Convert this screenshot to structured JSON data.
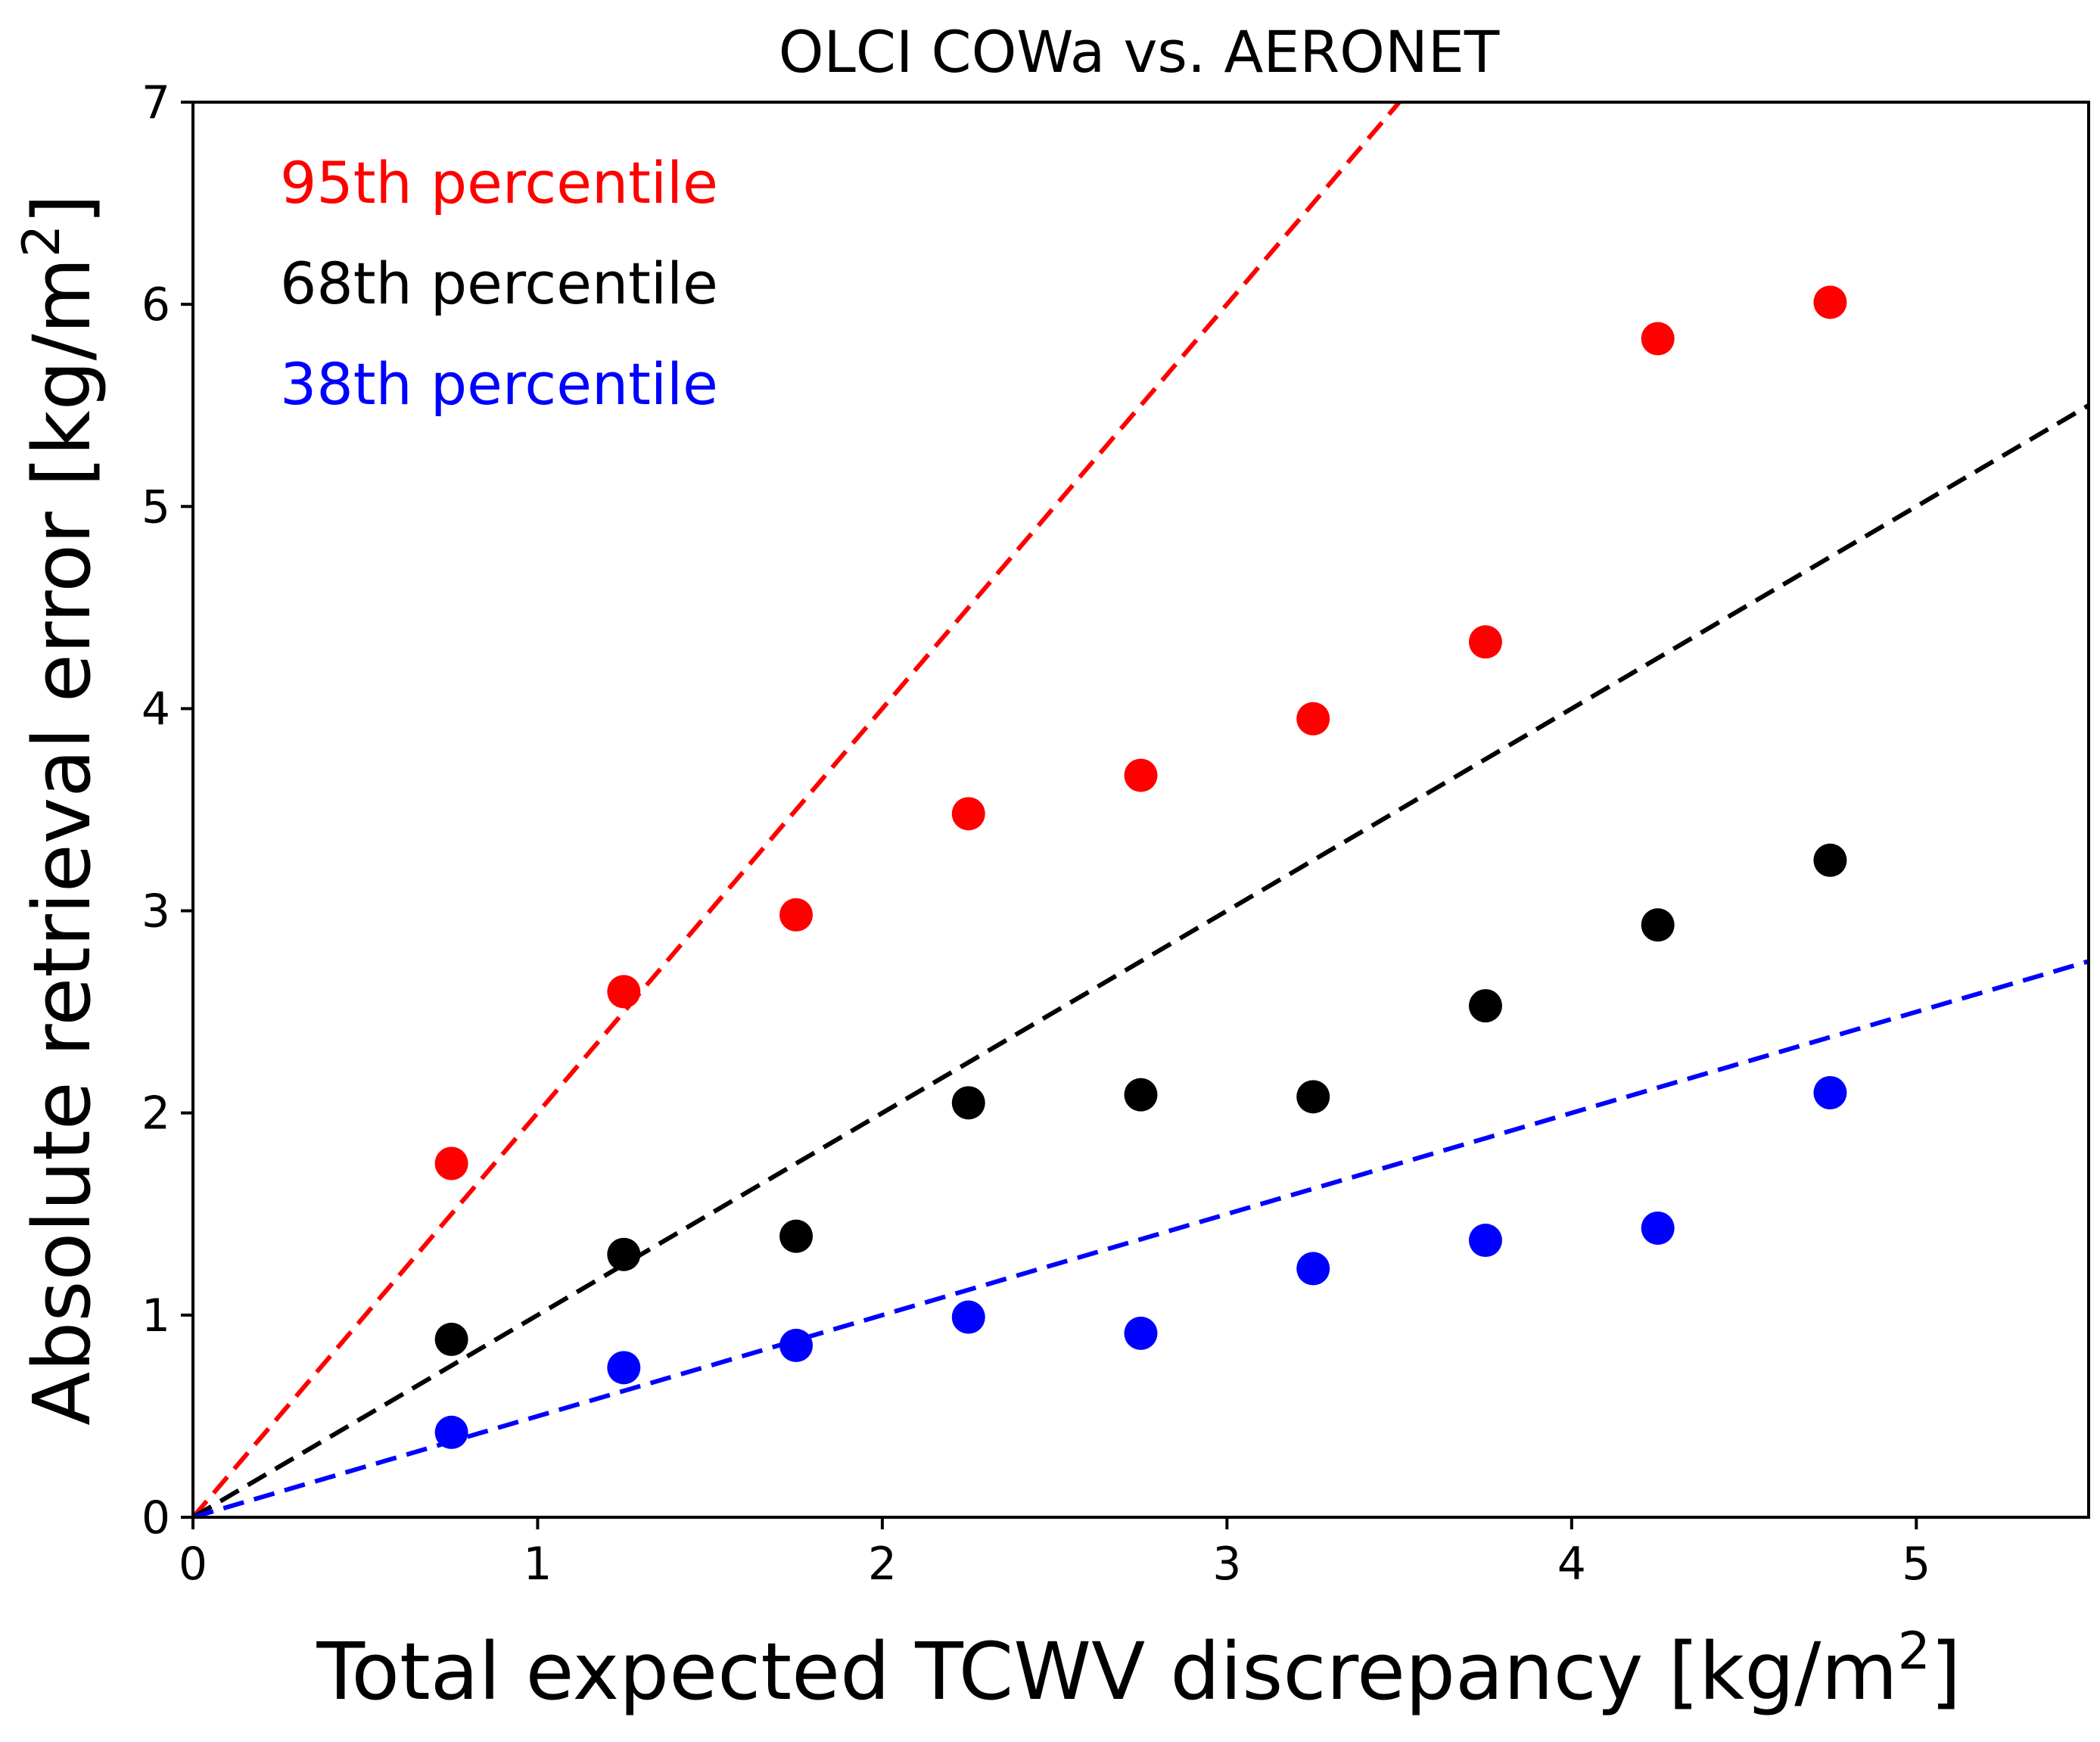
{
  "chart_data": {
    "type": "scatter",
    "title": "OLCI COWa vs. AERONET",
    "xlabel": "Total expected TCWV discrepancy [kg/m",
    "xlabel_sup": "2",
    "xlabel_end": "]",
    "ylabel": "Absolute retrieval error [kg/m",
    "ylabel_sup": "2",
    "ylabel_end": "]",
    "xlim": [
      0,
      5.5
    ],
    "ylim": [
      0,
      7
    ],
    "xticks": [
      "0",
      "1",
      "2",
      "3",
      "4",
      "5"
    ],
    "yticks": [
      "0",
      "1",
      "2",
      "3",
      "4",
      "5",
      "6",
      "7"
    ],
    "grid": false,
    "legend_position": "top-left",
    "x": [
      0.75,
      1.25,
      1.75,
      2.25,
      2.75,
      3.25,
      3.75,
      4.25,
      4.75
    ],
    "series": [
      {
        "name": "95th percentile",
        "color": "#ff0000",
        "values": [
          1.75,
          2.6,
          2.98,
          3.48,
          3.67,
          3.95,
          4.33,
          5.83,
          6.01
        ],
        "fit_slope": 2.0
      },
      {
        "name": "68th percentile",
        "color": "#000000",
        "values": [
          0.88,
          1.3,
          1.39,
          2.05,
          2.09,
          2.08,
          2.53,
          2.93,
          3.25
        ],
        "fit_slope": 1.0
      },
      {
        "name": "38th percentile",
        "color": "#0000ff",
        "values": [
          0.42,
          0.74,
          0.85,
          0.99,
          0.91,
          1.23,
          1.37,
          1.43,
          2.1
        ],
        "fit_slope": 0.5
      }
    ]
  }
}
